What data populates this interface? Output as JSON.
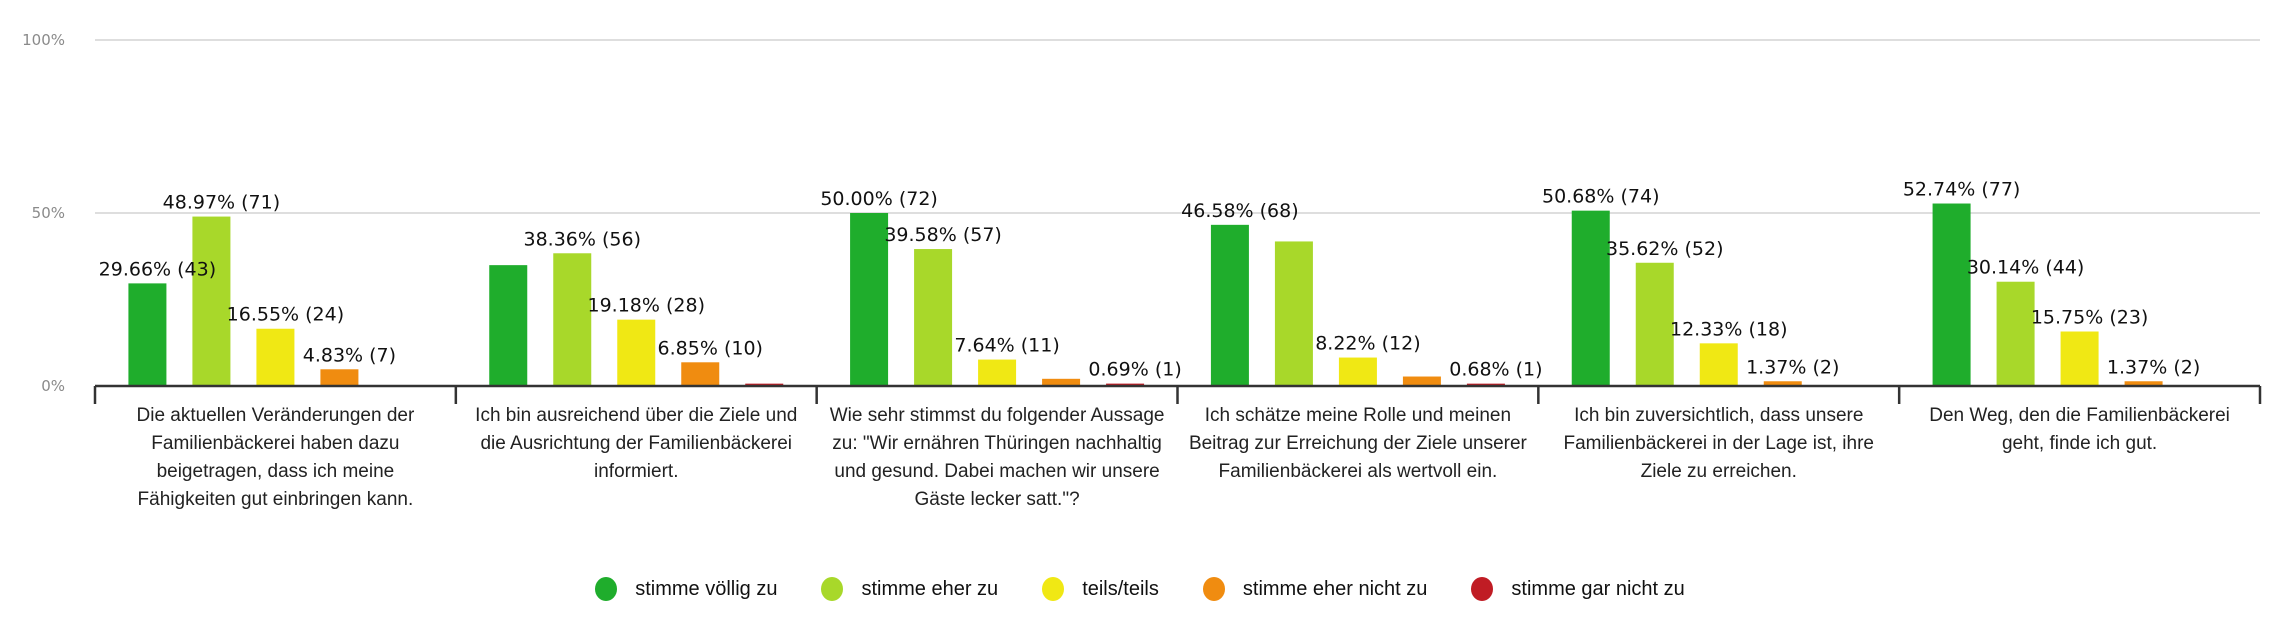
{
  "chart_data": {
    "type": "bar",
    "title": "",
    "xlabel": "",
    "ylabel": "",
    "ylim": [
      0,
      100
    ],
    "yticks": [
      "0%",
      "50%",
      "100%"
    ],
    "ytick_values": [
      0,
      50,
      100
    ],
    "grid": true,
    "legend_position": "bottom-center",
    "categories": [
      "Die aktuellen Veränderungen der Familienbäckerei haben dazu beigetragen, dass ich meine Fähigkeiten gut einbringen kann.",
      "Ich bin ausreichend über die Ziele und die Ausrichtung der Familienbäckerei informiert.",
      "Wie sehr stimmst du folgender Aussage zu: \"Wir ernähren Thüringen nachhaltig und gesund. Dabei machen wir unsere Gäste lecker satt.\"?",
      "Ich schätze meine Rolle und meinen Beitrag zur Erreichung der Ziele unserer Familienbäckerei als wertvoll ein.",
      "Ich bin zuversichtlich, dass unsere Familienbäckerei in der Lage ist, ihre Ziele zu erreichen.",
      "Den Weg, den die Familienbäckerei geht, finde ich gut."
    ],
    "series": [
      {
        "name": "stimme völlig zu",
        "color": "#1fad2c",
        "values": [
          29.66,
          34.93,
          50.0,
          46.58,
          50.68,
          52.74
        ],
        "labels": [
          "29.66% (43)",
          "",
          "50.00% (72)",
          "46.58% (68)",
          "50.68% (74)",
          "52.74% (77)"
        ]
      },
      {
        "name": "stimme eher zu",
        "color": "#a8d82a",
        "values": [
          48.97,
          38.36,
          39.58,
          41.78,
          35.62,
          30.14
        ],
        "labels": [
          "48.97% (71)",
          "38.36% (56)",
          "39.58% (57)",
          "",
          "35.62% (52)",
          "30.14% (44)"
        ]
      },
      {
        "name": "teils/teils",
        "color": "#f0e814",
        "values": [
          16.55,
          19.18,
          7.64,
          8.22,
          12.33,
          15.75
        ],
        "labels": [
          "16.55% (24)",
          "19.18% (28)",
          "7.64% (11)",
          "8.22% (12)",
          "12.33% (18)",
          "15.75% (23)"
        ]
      },
      {
        "name": "stimme eher nicht zu",
        "color": "#f08c10",
        "values": [
          4.83,
          6.85,
          2.08,
          2.74,
          1.37,
          1.37
        ],
        "labels": [
          "4.83% (7)",
          "6.85% (10)",
          "",
          "",
          "1.37% (2)",
          "1.37% (2)"
        ]
      },
      {
        "name": "stimme gar nicht zu",
        "color": "#c01c24",
        "values": [
          0,
          0.68,
          0.69,
          0.68,
          0,
          0
        ],
        "labels": [
          "",
          "",
          "0.69% (1)",
          "0.68% (1)",
          "",
          ""
        ]
      }
    ]
  },
  "legend": [
    {
      "label": "stimme völlig zu",
      "color": "#1fad2c"
    },
    {
      "label": "stimme eher zu",
      "color": "#a8d82a"
    },
    {
      "label": "teils/teils",
      "color": "#f0e814"
    },
    {
      "label": "stimme eher nicht zu",
      "color": "#f08c10"
    },
    {
      "label": "stimme gar nicht zu",
      "color": "#c01c24"
    }
  ],
  "colors": {
    "axis": "#333333",
    "grid": "#dedede",
    "tick_text": "#8a8a8a",
    "label_text": "#111111"
  }
}
